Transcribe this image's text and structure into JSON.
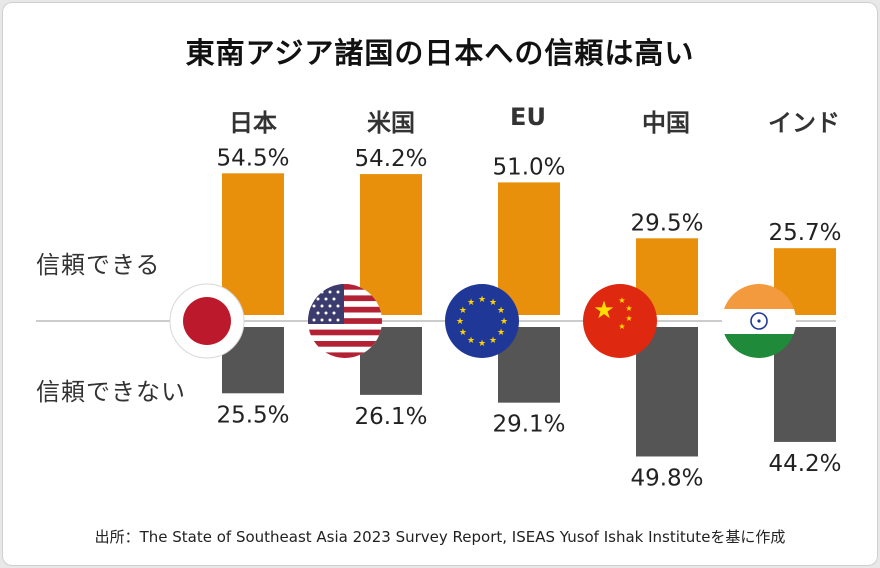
{
  "title": "東南アジア諸国の日本への信頼は高い",
  "row_labels": {
    "trust": "信頼できる",
    "distrust": "信頼できない"
  },
  "source": "出所：The State of Southeast Asia 2023 Survey Report, ISEAS Yusof Ishak Instituteを基に作成",
  "colors": {
    "trust": "#e8900c",
    "distrust": "#555555",
    "baseline": "#bbbbbb"
  },
  "chart_data": {
    "type": "bar",
    "categories": [
      "日本",
      "米国",
      "EU",
      "中国",
      "インド"
    ],
    "flags": [
      "japan-flag-icon",
      "usa-flag-icon",
      "eu-flag-icon",
      "china-flag-icon",
      "india-flag-icon"
    ],
    "series": [
      {
        "name": "信頼できる",
        "values": [
          54.5,
          54.2,
          51.0,
          29.5,
          25.7
        ],
        "labels": [
          "54.5%",
          "54.2%",
          "51.0%",
          "29.5%",
          "25.7%"
        ]
      },
      {
        "name": "信頼できない",
        "values": [
          25.5,
          26.1,
          29.1,
          49.8,
          44.2
        ],
        "labels": [
          "25.5%",
          "26.1%",
          "29.1%",
          "49.8%",
          "44.2%"
        ]
      }
    ],
    "unit": "%"
  }
}
